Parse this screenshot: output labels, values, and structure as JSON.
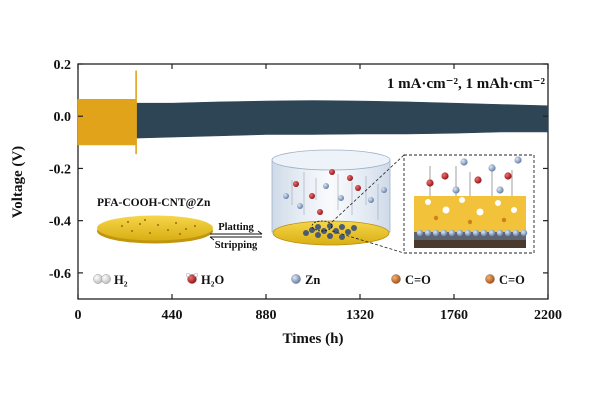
{
  "chart_data": {
    "type": "line",
    "annotation": "1 mA·cm⁻², 1 mAh·cm⁻²",
    "xlabel": "Times (h)",
    "ylabel": "Voltage (V)",
    "xlim": [
      0,
      2200
    ],
    "ylim": [
      -0.7,
      0.2
    ],
    "xticks": [
      "0",
      "440",
      "880",
      "1320",
      "1760",
      "2200"
    ],
    "xtick_values": [
      0,
      440,
      880,
      1320,
      1760,
      2200
    ],
    "yticks": [
      "0.2",
      "0.0",
      "-0.2",
      "-0.4",
      "-0.6"
    ],
    "ytick_values": [
      0.2,
      0.0,
      -0.2,
      -0.4,
      -0.6
    ],
    "grid": false,
    "series": [
      {
        "color": "#2e4556",
        "x": [
          0,
          220,
          440,
          660,
          880,
          1100,
          1320,
          1540,
          1760,
          1980,
          2200
        ],
        "y_upper": [
          0.055,
          0.05,
          0.05,
          0.055,
          0.058,
          0.06,
          0.058,
          0.055,
          0.05,
          0.045,
          0.04
        ],
        "y_lower": [
          -0.09,
          -0.085,
          -0.08,
          -0.075,
          -0.07,
          -0.07,
          -0.068,
          -0.068,
          -0.065,
          -0.06,
          -0.06
        ]
      },
      {
        "color": "#e0a31a",
        "x": [
          0,
          100,
          200,
          270
        ],
        "y_upper": [
          0.065,
          0.065,
          0.065,
          0.065
        ],
        "y_lower": [
          -0.11,
          -0.11,
          -0.11,
          -0.11
        ],
        "spike_x": 272,
        "spike_range": [
          -0.145,
          0.175
        ]
      }
    ]
  },
  "inset": {
    "electrode_label": "PFA-COOH-CNT@Zn",
    "arrow_top": "Platting",
    "arrow_bottom": "Stripping"
  },
  "legend": [
    {
      "label": "H₂",
      "color": "#f2f2f2"
    },
    {
      "label": "H₂O",
      "color": "#c0282d"
    },
    {
      "label": "Zn",
      "color": "#7d96bb"
    },
    {
      "label": "C=O",
      "color": "#c8641c"
    },
    {
      "label": "C=O",
      "color": "#c8641c"
    }
  ],
  "legend_placement": "bottom"
}
